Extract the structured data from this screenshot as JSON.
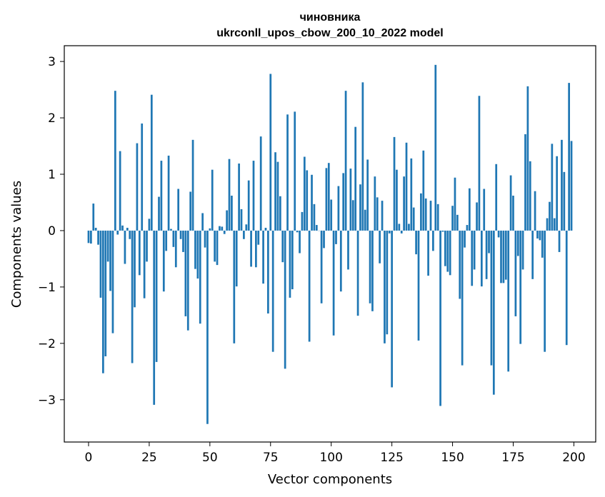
{
  "chart_data": {
    "type": "bar",
    "title_line1": "чиновника",
    "title_line2": "ukrconll_upos_cbow_200_10_2022 model",
    "xlabel": "Vector components",
    "ylabel": "Components values",
    "xlim": [
      -10,
      209
    ],
    "ylim": [
      -3.75,
      3.28
    ],
    "xticks": [
      0,
      25,
      50,
      75,
      100,
      125,
      150,
      175,
      200
    ],
    "yticks": [
      -3,
      -2,
      -1,
      0,
      1,
      2,
      3
    ],
    "xtick_labels": [
      "0",
      "25",
      "50",
      "75",
      "100",
      "125",
      "150",
      "175",
      "200"
    ],
    "ytick_labels": [
      "−3",
      "−2",
      "−1",
      "0",
      "1",
      "2",
      "3"
    ],
    "bar_color": "#1f77b4",
    "grid": false,
    "values": [
      -0.22,
      -0.23,
      0.48,
      0.05,
      -0.25,
      -1.19,
      -2.53,
      -2.23,
      -0.55,
      -1.07,
      -1.82,
      2.48,
      -0.07,
      1.41,
      0.09,
      -0.59,
      0.05,
      -0.15,
      -2.35,
      -1.36,
      1.55,
      -0.79,
      1.9,
      -1.2,
      -0.55,
      0.21,
      2.41,
      -3.09,
      -2.33,
      0.6,
      1.24,
      -1.08,
      -0.36,
      1.33,
      0.03,
      -0.29,
      -0.65,
      0.74,
      -0.15,
      -0.38,
      -1.52,
      -1.77,
      0.69,
      1.61,
      -0.68,
      -0.85,
      -1.65,
      0.31,
      -0.3,
      -3.43,
      0.04,
      1.08,
      -0.55,
      -0.61,
      0.08,
      0.07,
      -0.06,
      0.36,
      1.27,
      0.62,
      -2.0,
      -0.99,
      1.19,
      0.38,
      -0.15,
      0.11,
      0.89,
      -0.64,
      1.24,
      -0.65,
      -0.25,
      1.67,
      -0.94,
      0.05,
      -1.47,
      2.78,
      -2.15,
      1.39,
      1.22,
      0.61,
      -0.56,
      -2.45,
      2.06,
      -1.19,
      -1.04,
      2.11,
      -0.03,
      -0.4,
      0.33,
      1.31,
      1.07,
      -1.97,
      0.99,
      0.47,
      0.1,
      0.0,
      -1.29,
      -0.31,
      1.11,
      1.2,
      0.55,
      -1.86,
      -0.24,
      0.79,
      -1.08,
      1.02,
      2.48,
      -0.69,
      1.1,
      0.54,
      1.84,
      -1.51,
      0.82,
      2.63,
      0.37,
      1.26,
      -1.29,
      -1.43,
      0.96,
      0.59,
      -0.58,
      0.53,
      -2.0,
      -1.84,
      -0.05,
      -2.78,
      1.66,
      1.08,
      0.12,
      -0.05,
      0.96,
      1.56,
      0.12,
      1.28,
      0.41,
      -0.42,
      -1.95,
      0.66,
      1.42,
      0.57,
      -0.8,
      0.53,
      -0.36,
      2.94,
      0.47,
      -3.11,
      -0.02,
      -0.63,
      -0.73,
      -0.79,
      0.44,
      0.94,
      0.28,
      -1.21,
      -2.39,
      -0.3,
      0.1,
      0.75,
      -0.98,
      -0.69,
      0.5,
      2.39,
      -0.99,
      0.74,
      -0.86,
      -0.4,
      -2.39,
      -2.91,
      1.18,
      -0.12,
      -0.93,
      -0.93,
      -0.87,
      -2.5,
      0.98,
      0.62,
      -1.52,
      -0.45,
      -2.01,
      -0.69,
      1.71,
      2.56,
      1.23,
      -0.86,
      0.7,
      -0.14,
      -0.17,
      -0.48,
      -2.15,
      0.22,
      0.51,
      1.54,
      0.22,
      1.32,
      -0.38,
      1.61,
      1.04,
      -2.03,
      2.62,
      1.59
    ]
  }
}
